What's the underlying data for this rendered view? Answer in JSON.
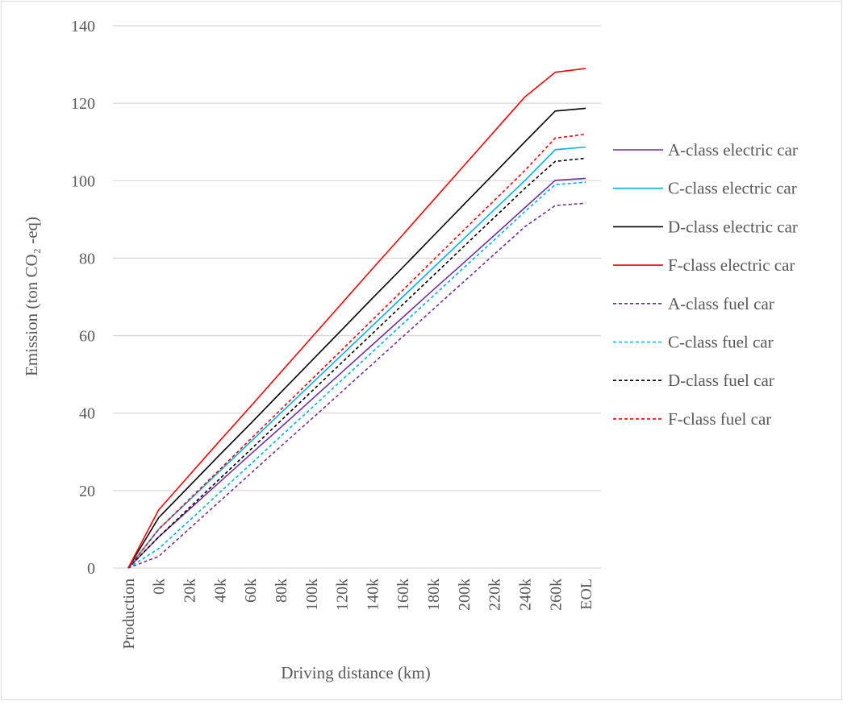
{
  "chart_data": {
    "type": "line",
    "title": "",
    "xlabel": "Driving distance (km)",
    "ylabel": "Emission (ton CO₂ -eq)",
    "categories": [
      "Production",
      "0k",
      "20k",
      "40k",
      "60k",
      "80k",
      "100k",
      "120k",
      "140k",
      "160k",
      "180k",
      "200k",
      "220k",
      "240k",
      "260k",
      "EOL"
    ],
    "ylim": [
      0,
      140
    ],
    "yticks": [
      "0",
      "20",
      "40",
      "60",
      "80",
      "100",
      "120",
      "140"
    ],
    "grid": "horizontal",
    "legend": "right",
    "series": [
      {
        "name": "A-class electric car",
        "color": "#7030a0",
        "dash": "solid",
        "values": [
          0,
          8,
          15.1,
          22.2,
          29.3,
          36.3,
          43.4,
          50.5,
          57.6,
          64.7,
          71.8,
          78.8,
          85.9,
          93,
          100.1,
          100.6
        ]
      },
      {
        "name": "C-class electric car",
        "color": "#00b0f0",
        "dash": "solid",
        "values": [
          0,
          10,
          17.5,
          25,
          32.5,
          40,
          47.5,
          55,
          62.5,
          70,
          77.5,
          85,
          92.5,
          100,
          108,
          108.7
        ]
      },
      {
        "name": "D-class electric car",
        "color": "#000000",
        "dash": "solid",
        "values": [
          0,
          13,
          21.1,
          29.2,
          37.2,
          45.3,
          53.4,
          61.5,
          69.6,
          77.6,
          85.7,
          93.8,
          101.9,
          110,
          118,
          118.7
        ]
      },
      {
        "name": "F-class electric car",
        "color": "#ff0000",
        "dash": "solid",
        "values": [
          0,
          15,
          23.9,
          32.8,
          41.6,
          50.5,
          59.4,
          68.3,
          77.2,
          86,
          94.9,
          103.8,
          112.7,
          121.6,
          128,
          129
        ]
      },
      {
        "name": "A-class fuel car",
        "color": "#7030a0",
        "dash": "dashed",
        "values": [
          0,
          3,
          10.1,
          17.2,
          24.3,
          31.4,
          38.4,
          45.5,
          52.6,
          59.7,
          66.8,
          73.9,
          81,
          88.1,
          93.6,
          94.2
        ]
      },
      {
        "name": "C-class fuel car",
        "color": "#00b0f0",
        "dash": "dashed",
        "values": [
          0,
          5,
          12.2,
          19.5,
          26.7,
          34,
          41.2,
          48.5,
          55.7,
          63,
          70.2,
          77.5,
          84.7,
          92,
          99,
          99.6
        ]
      },
      {
        "name": "D-class fuel car",
        "color": "#000000",
        "dash": "dashed",
        "values": [
          0,
          8,
          15.5,
          23,
          30.5,
          38,
          45.5,
          53,
          60.5,
          68,
          75.5,
          83,
          90.5,
          98,
          105,
          105.8
        ]
      },
      {
        "name": "F-class fuel car",
        "color": "#ff0000",
        "dash": "dashed",
        "values": [
          0,
          10,
          17.7,
          25.4,
          33.2,
          40.9,
          48.6,
          56.3,
          64,
          71.7,
          79.5,
          87.2,
          94.9,
          102.6,
          111,
          112
        ]
      }
    ]
  }
}
